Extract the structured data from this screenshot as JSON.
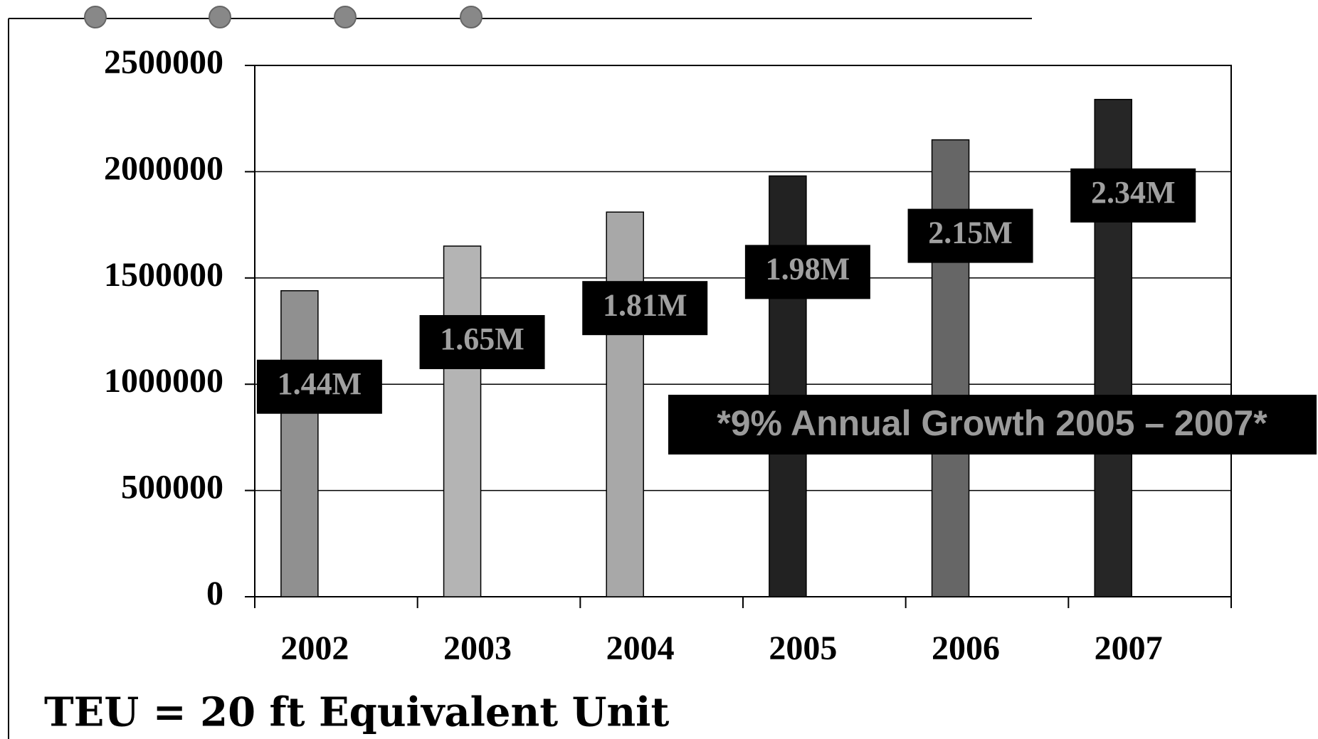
{
  "chart_data": {
    "type": "bar",
    "categories": [
      "2002",
      "2003",
      "2004",
      "2005",
      "2006",
      "2007"
    ],
    "values": [
      1440000,
      1650000,
      1810000,
      1980000,
      2150000,
      2340000
    ],
    "value_labels": [
      "1.44M",
      "1.65M",
      "1.81M",
      "1.98M",
      "2.15M",
      "2.34M"
    ],
    "colors": [
      "#909090",
      "#b4b4b4",
      "#a8a8a8",
      "#222222",
      "#666666",
      "#262626"
    ],
    "ylim": [
      0,
      2500000
    ],
    "yticks": [
      0,
      500000,
      1000000,
      1500000,
      2000000,
      2500000
    ],
    "grid": true,
    "annotation": "*9% Annual Growth  2005 – 2007*",
    "footnote": "TEU = 20 ft Equivalent Unit"
  }
}
